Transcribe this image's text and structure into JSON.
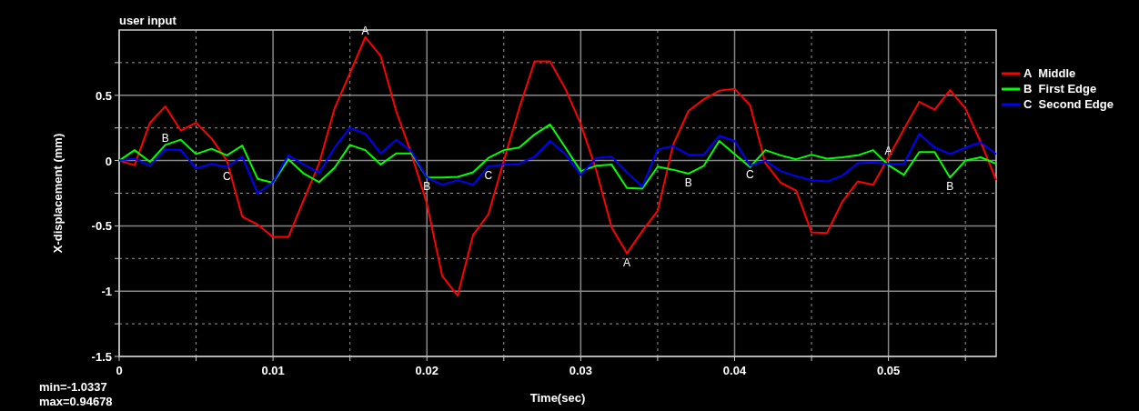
{
  "chart_data": {
    "type": "line",
    "title": "user input",
    "xlabel": "Time(sec)",
    "ylabel": "X-displacement (mm)",
    "x": [
      0,
      0.001,
      0.002,
      0.003,
      0.004,
      0.005,
      0.006,
      0.007,
      0.008,
      0.009,
      0.01,
      0.011,
      0.012,
      0.013,
      0.014,
      0.015,
      0.016,
      0.017,
      0.018,
      0.019,
      0.02,
      0.021,
      0.022,
      0.023,
      0.024,
      0.025,
      0.026,
      0.027,
      0.028,
      0.029,
      0.03,
      0.031,
      0.032,
      0.033,
      0.034,
      0.035,
      0.036,
      0.037,
      0.038,
      0.039,
      0.04,
      0.041,
      0.042,
      0.043,
      0.044,
      0.045,
      0.046,
      0.047,
      0.048,
      0.049,
      0.05,
      0.051,
      0.052,
      0.053,
      0.054,
      0.055,
      0.056,
      0.057
    ],
    "series": [
      {
        "name": "A  Middle",
        "color": "#ff0000",
        "values": [
          0,
          -0.035,
          0.29,
          0.415,
          0.23,
          0.29,
          0.17,
          0,
          -0.43,
          -0.49,
          -0.585,
          -0.585,
          -0.3,
          -0.02,
          0.4,
          0.67,
          0.946,
          0.8,
          0.38,
          0.05,
          -0.33,
          -0.885,
          -1.034,
          -0.57,
          -0.41,
          0,
          0.4,
          0.76,
          0.76,
          0.55,
          0.28,
          -0.07,
          -0.51,
          -0.71,
          -0.54,
          -0.385,
          0.12,
          0.38,
          0.47,
          0.535,
          0.55,
          0.425,
          -0.02,
          -0.17,
          -0.23,
          -0.55,
          -0.555,
          -0.315,
          -0.16,
          -0.185,
          0.025,
          0.24,
          0.45,
          0.39,
          0.54,
          0.4,
          0.14,
          -0.15
        ]
      },
      {
        "name": "B  First Edge",
        "color": "#00ff00",
        "values": [
          0,
          0.08,
          -0.01,
          0.12,
          0.16,
          0.05,
          0.09,
          0.04,
          0.115,
          -0.14,
          -0.17,
          0.01,
          -0.1,
          -0.165,
          -0.055,
          0.12,
          0.08,
          -0.03,
          0.055,
          0.055,
          -0.13,
          -0.13,
          -0.125,
          -0.09,
          0.02,
          0.08,
          0.1,
          0.2,
          0.277,
          0.1,
          -0.08,
          -0.04,
          -0.03,
          -0.21,
          -0.215,
          -0.047,
          -0.07,
          -0.1,
          -0.04,
          0.15,
          0.05,
          -0.05,
          0.08,
          0.04,
          0.01,
          0.045,
          0.015,
          0.025,
          0.04,
          0.08,
          -0.035,
          -0.11,
          0.065,
          0.065,
          -0.13,
          0,
          0.025,
          -0.025
        ]
      },
      {
        "name": "C  Second Edge",
        "color": "#0000ff",
        "values": [
          0,
          0.015,
          -0.04,
          0.085,
          0.08,
          -0.06,
          -0.025,
          -0.05,
          0.03,
          -0.25,
          -0.165,
          0.04,
          -0.03,
          -0.095,
          0.1,
          0.25,
          0.205,
          0.055,
          0.16,
          0.07,
          -0.13,
          -0.185,
          -0.15,
          -0.185,
          -0.045,
          -0.03,
          -0.025,
          0.03,
          0.15,
          0.05,
          -0.11,
          0.02,
          0.03,
          -0.09,
          -0.2,
          0.085,
          0.11,
          0.045,
          0.045,
          0.19,
          0.15,
          -0.04,
          0,
          -0.08,
          -0.12,
          -0.15,
          -0.16,
          -0.115,
          -0.02,
          -0.015,
          -0.025,
          -0.025,
          0.205,
          0.1,
          0.05,
          0.1,
          0.14,
          0.05
        ]
      }
    ],
    "xlim": [
      0,
      0.057
    ],
    "xticks": [
      0,
      {
        "value": 0.005,
        "label": null
      },
      0.01,
      {
        "value": 0.015,
        "label": null
      },
      0.02,
      {
        "value": 0.025,
        "label": null
      },
      0.03,
      {
        "value": 0.035,
        "label": null
      },
      0.04,
      {
        "value": 0.045,
        "label": null
      },
      0.05,
      {
        "value": 0.055,
        "label": null
      }
    ],
    "ylim": [
      -1.5,
      1
    ],
    "yticks": [
      -1.5,
      {
        "value": -1.25,
        "label": null
      },
      -1,
      {
        "value": -0.75,
        "label": null
      },
      -0.5,
      {
        "value": -0.25,
        "label": null
      },
      0,
      {
        "value": 0.25,
        "label": null
      },
      0.5,
      {
        "value": 0.75,
        "label": null
      }
    ],
    "grid": true,
    "legend": "right",
    "marker": "none",
    "line_style": "solid",
    "annotations": [
      {
        "text": "A",
        "x": 0.016,
        "y": 0.946
      },
      {
        "text": "A",
        "x": 0.033,
        "y": -0.71
      },
      {
        "text": "A",
        "x": 0.05,
        "y": 0.025
      },
      {
        "text": "B",
        "x": 0.003,
        "y": 0.12
      },
      {
        "text": "B",
        "x": 0.02,
        "y": -0.13
      },
      {
        "text": "B",
        "x": 0.037,
        "y": -0.1
      },
      {
        "text": "B",
        "x": 0.054,
        "y": -0.13
      },
      {
        "text": "C",
        "x": 0.007,
        "y": -0.05
      },
      {
        "text": "C",
        "x": 0.024,
        "y": -0.045
      },
      {
        "text": "C",
        "x": 0.041,
        "y": -0.04
      },
      "min=-1.0337",
      "max=0.94678"
    ]
  }
}
